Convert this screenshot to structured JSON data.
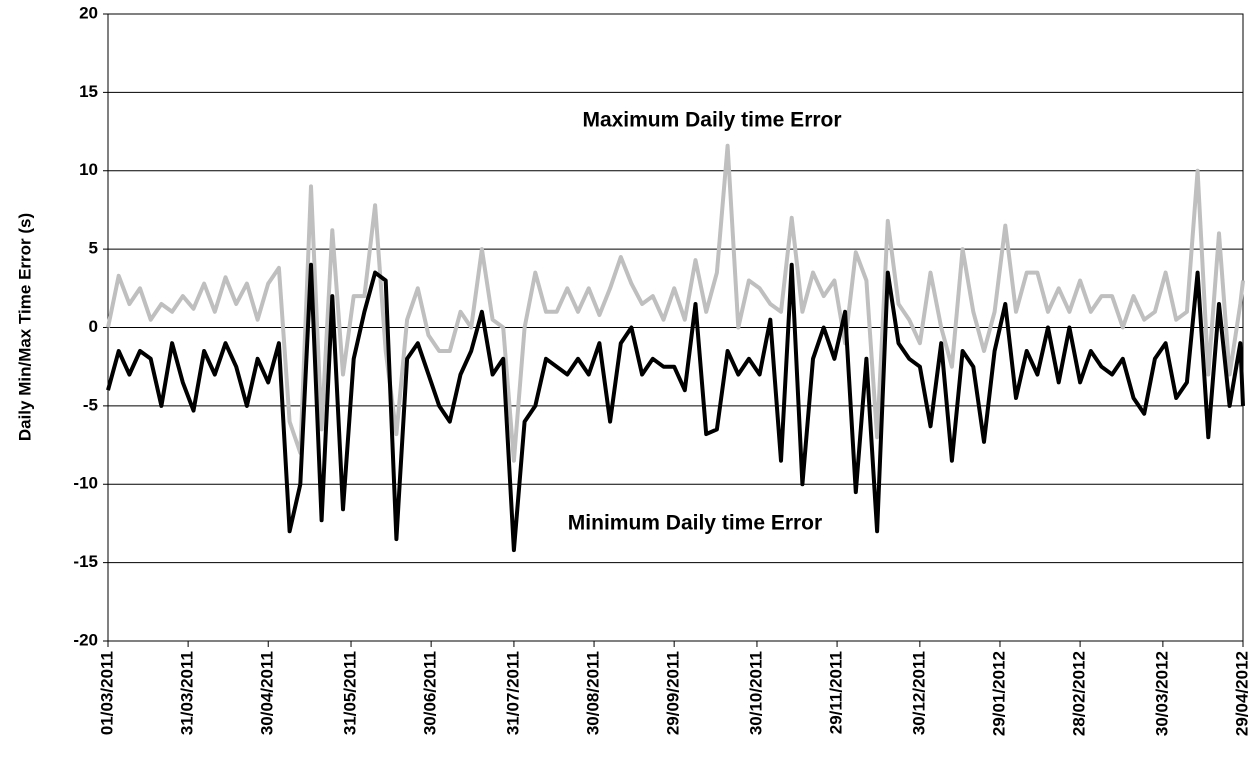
{
  "chart_data": {
    "type": "line",
    "ylabel": "Daily Min/Max Time Error (s)",
    "annotations": [
      "Maximum Daily time Error",
      "Minimum Daily time Error"
    ],
    "ylim": [
      -20,
      20
    ],
    "yticks": [
      -20,
      -15,
      -10,
      -5,
      0,
      5,
      10,
      15,
      20
    ],
    "xlim": [
      "01/03/2011",
      "29/04/2012"
    ],
    "xticks": [
      "01/03/2011",
      "31/03/2011",
      "30/04/2011",
      "31/05/2011",
      "30/06/2011",
      "31/07/2011",
      "30/08/2011",
      "29/09/2011",
      "30/10/2011",
      "29/11/2011",
      "30/12/2011",
      "29/01/2012",
      "28/02/2012",
      "30/03/2012",
      "29/04/2012"
    ],
    "grid": true,
    "x": [
      "01/03/2011",
      "05/03/2011",
      "09/03/2011",
      "13/03/2011",
      "17/03/2011",
      "21/03/2011",
      "25/03/2011",
      "29/03/2011",
      "02/04/2011",
      "06/04/2011",
      "10/04/2011",
      "14/04/2011",
      "18/04/2011",
      "22/04/2011",
      "26/04/2011",
      "30/04/2011",
      "04/05/2011",
      "08/05/2011",
      "12/05/2011",
      "16/05/2011",
      "20/05/2011",
      "24/05/2011",
      "28/05/2011",
      "01/06/2011",
      "05/06/2011",
      "09/06/2011",
      "13/06/2011",
      "17/06/2011",
      "21/06/2011",
      "25/06/2011",
      "29/06/2011",
      "03/07/2011",
      "07/07/2011",
      "11/07/2011",
      "15/07/2011",
      "19/07/2011",
      "23/07/2011",
      "27/07/2011",
      "31/07/2011",
      "04/08/2011",
      "08/08/2011",
      "12/08/2011",
      "16/08/2011",
      "20/08/2011",
      "24/08/2011",
      "28/08/2011",
      "01/09/2011",
      "05/09/2011",
      "09/09/2011",
      "13/09/2011",
      "17/09/2011",
      "21/09/2011",
      "25/09/2011",
      "29/09/2011",
      "03/10/2011",
      "07/10/2011",
      "11/10/2011",
      "15/10/2011",
      "19/10/2011",
      "23/10/2011",
      "27/10/2011",
      "31/10/2011",
      "04/11/2011",
      "08/11/2011",
      "12/11/2011",
      "16/11/2011",
      "20/11/2011",
      "24/11/2011",
      "28/11/2011",
      "02/12/2011",
      "06/12/2011",
      "10/12/2011",
      "14/12/2011",
      "18/12/2011",
      "22/12/2011",
      "26/12/2011",
      "30/12/2011",
      "03/01/2012",
      "07/01/2012",
      "11/01/2012",
      "15/01/2012",
      "19/01/2012",
      "23/01/2012",
      "27/01/2012",
      "31/01/2012",
      "04/02/2012",
      "08/02/2012",
      "12/02/2012",
      "16/02/2012",
      "20/02/2012",
      "24/02/2012",
      "28/02/2012",
      "03/03/2012",
      "07/03/2012",
      "11/03/2012",
      "15/03/2012",
      "19/03/2012",
      "23/03/2012",
      "27/03/2012",
      "31/03/2012",
      "04/04/2012",
      "08/04/2012",
      "12/04/2012",
      "16/04/2012",
      "20/04/2012",
      "24/04/2012",
      "28/04/2012",
      "29/04/2012"
    ],
    "series": [
      {
        "color": "#bfbfbf",
        "values": [
          0,
          3.3,
          1.5,
          2.5,
          0.5,
          1.5,
          1,
          2,
          1.2,
          2.8,
          1,
          3.2,
          1.5,
          2.8,
          0.5,
          2.8,
          3.8,
          -6,
          -8,
          9,
          -6.5,
          6.2,
          -3,
          2,
          2,
          7.8,
          -1.5,
          -6.8,
          0.5,
          2.5,
          -0.5,
          -1.5,
          -1.5,
          1,
          0,
          5,
          0.5,
          0,
          -8.5,
          0,
          3.5,
          1,
          1,
          2.5,
          1,
          2.5,
          0.8,
          2.5,
          4.5,
          2.8,
          1.5,
          2,
          0.5,
          2.5,
          0.5,
          4.3,
          1,
          3.5,
          11.6,
          0,
          3,
          2.5,
          1.5,
          1,
          7,
          1,
          3.5,
          2,
          3,
          -1,
          4.8,
          3,
          -7,
          6.8,
          1.5,
          0.5,
          -1,
          3.5,
          0,
          -2.5,
          5,
          1,
          -1.5,
          1,
          6.5,
          1,
          3.5,
          3.5,
          1,
          2.5,
          1,
          3,
          1,
          2,
          2,
          0,
          2,
          0.5,
          1,
          3.5,
          0.5,
          1,
          10,
          -3,
          6,
          -3,
          1.5,
          3
        ]
      },
      {
        "color": "#000000",
        "values": [
          -4,
          -1.5,
          -3,
          -1.5,
          -2,
          -5,
          -1,
          -3.5,
          -5.3,
          -1.5,
          -3,
          -1,
          -2.5,
          -5,
          -2,
          -3.5,
          -1,
          -13,
          -10,
          4,
          -12.3,
          2,
          -11.6,
          -2,
          1,
          3.5,
          3,
          -13.5,
          -2,
          -1,
          -3,
          -5,
          -6,
          -3,
          -1.5,
          1,
          -3,
          -2,
          -14.2,
          -6,
          -5,
          -2,
          -2.5,
          -3,
          -2,
          -3,
          -1,
          -6,
          -1,
          0,
          -3,
          -2,
          -2.5,
          -2.5,
          -4,
          1.5,
          -6.8,
          -6.5,
          -1.5,
          -3,
          -2,
          -3,
          0.5,
          -8.5,
          4,
          -10,
          -2,
          0,
          -2,
          1,
          -10.5,
          -2,
          -13,
          3.5,
          -1,
          -2,
          -2.5,
          -6.3,
          -1,
          -8.5,
          -1.5,
          -2.5,
          -7.3,
          -1.5,
          1.5,
          -4.5,
          -1.5,
          -3,
          0,
          -3.5,
          0,
          -3.5,
          -1.5,
          -2.5,
          -3,
          -2,
          -4.5,
          -5.5,
          -2,
          -1,
          -4.5,
          -3.5,
          3.5,
          -7,
          1.5,
          -5,
          -1,
          -5
        ]
      }
    ]
  }
}
